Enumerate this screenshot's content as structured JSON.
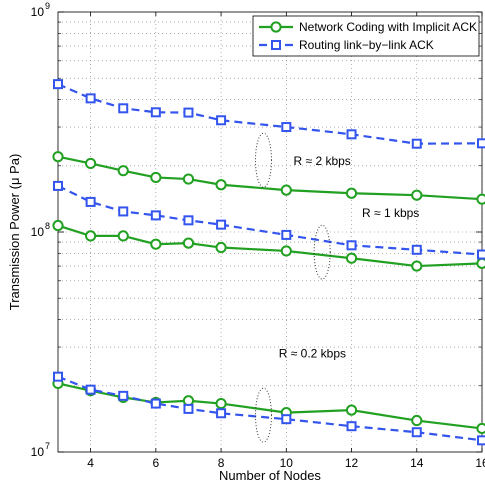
{
  "chart_data": {
    "type": "line",
    "xlabel": "Number of Nodes",
    "ylabel": "Transmission Power (μ Pa)",
    "x_ticks": [
      4,
      6,
      8,
      10,
      12,
      14,
      16
    ],
    "x_tick_labels": [
      "4",
      "6",
      "8",
      "10",
      "12",
      "14",
      "16"
    ],
    "xlim": [
      3,
      16
    ],
    "y_scale": "log",
    "ylim": [
      10000000,
      1000000000
    ],
    "y_ticks": [
      {
        "value": 10000000,
        "base": "10",
        "exp": "7"
      },
      {
        "value": 100000000,
        "base": "10",
        "exp": "8"
      },
      {
        "value": 1000000000,
        "base": "10",
        "exp": "9"
      }
    ],
    "grid": true,
    "legend_position": "top-right",
    "series": [
      {
        "name": "Network Coding with Implicit ACK",
        "style": "solid",
        "marker": "circle",
        "color": "#22a022",
        "groups": [
          {
            "x": [
              3,
              4,
              5,
              6,
              7,
              8,
              10,
              12,
              14,
              16
            ],
            "y": [
              220000000,
              205000000,
              190000000,
              177000000,
              174000000,
              164000000,
              155000000,
              150000000,
              147000000,
              141000000
            ]
          },
          {
            "x": [
              3,
              4,
              5,
              6,
              7,
              8,
              10,
              12,
              14,
              16
            ],
            "y": [
              107000000,
              96000000,
              96000000,
              88000000,
              89000000,
              85000000,
              82000000,
              76000000,
              70000000,
              72000000
            ]
          },
          {
            "x": [
              3,
              4,
              5,
              6,
              7,
              8,
              10,
              12,
              14,
              16
            ],
            "y": [
              20500000,
              19000000,
              17700000,
              16800000,
              17100000,
              16600000,
              15100000,
              15500000,
              13900000,
              12800000
            ]
          }
        ]
      },
      {
        "name": "Routing link−by−link ACK",
        "style": "dashed",
        "marker": "square",
        "color": "#3355ee",
        "groups": [
          {
            "x": [
              3,
              4,
              5,
              6,
              7,
              8,
              10,
              12,
              14,
              16
            ],
            "y": [
              470000000,
              405000000,
              365000000,
              350000000,
              349000000,
              322000000,
              300000000,
              278000000,
              252000000,
              253000000
            ]
          },
          {
            "x": [
              3,
              4,
              5,
              6,
              7,
              8,
              10,
              12,
              14,
              16
            ],
            "y": [
              162000000,
              137000000,
              124000000,
              119000000,
              113000000,
              108000000,
              97000000,
              87000000,
              83000000,
              79000000
            ]
          },
          {
            "x": [
              3,
              4,
              5,
              6,
              7,
              8,
              10,
              12,
              14,
              16
            ],
            "y": [
              22000000,
              19200000,
              18000000,
              16600000,
              15700000,
              15000000,
              14100000,
              13100000,
              12300000,
              11300000
            ]
          }
        ]
      }
    ],
    "annotations": [
      {
        "text": "R ≈ 2 kbps",
        "x": 11.1,
        "y": 210000000,
        "ellipse": {
          "cx": 9.3,
          "cy": 212000000
        }
      },
      {
        "text": "R ≈ 1 kbps",
        "x": 13.2,
        "y": 122000000,
        "ellipse": {
          "cx": 11.1,
          "cy": 81000000
        }
      },
      {
        "text": "R ≈ 0.2 kbps",
        "x": 10.8,
        "y": 28000000,
        "ellipse": {
          "cx": 9.3,
          "cy": 14700000
        }
      }
    ]
  }
}
